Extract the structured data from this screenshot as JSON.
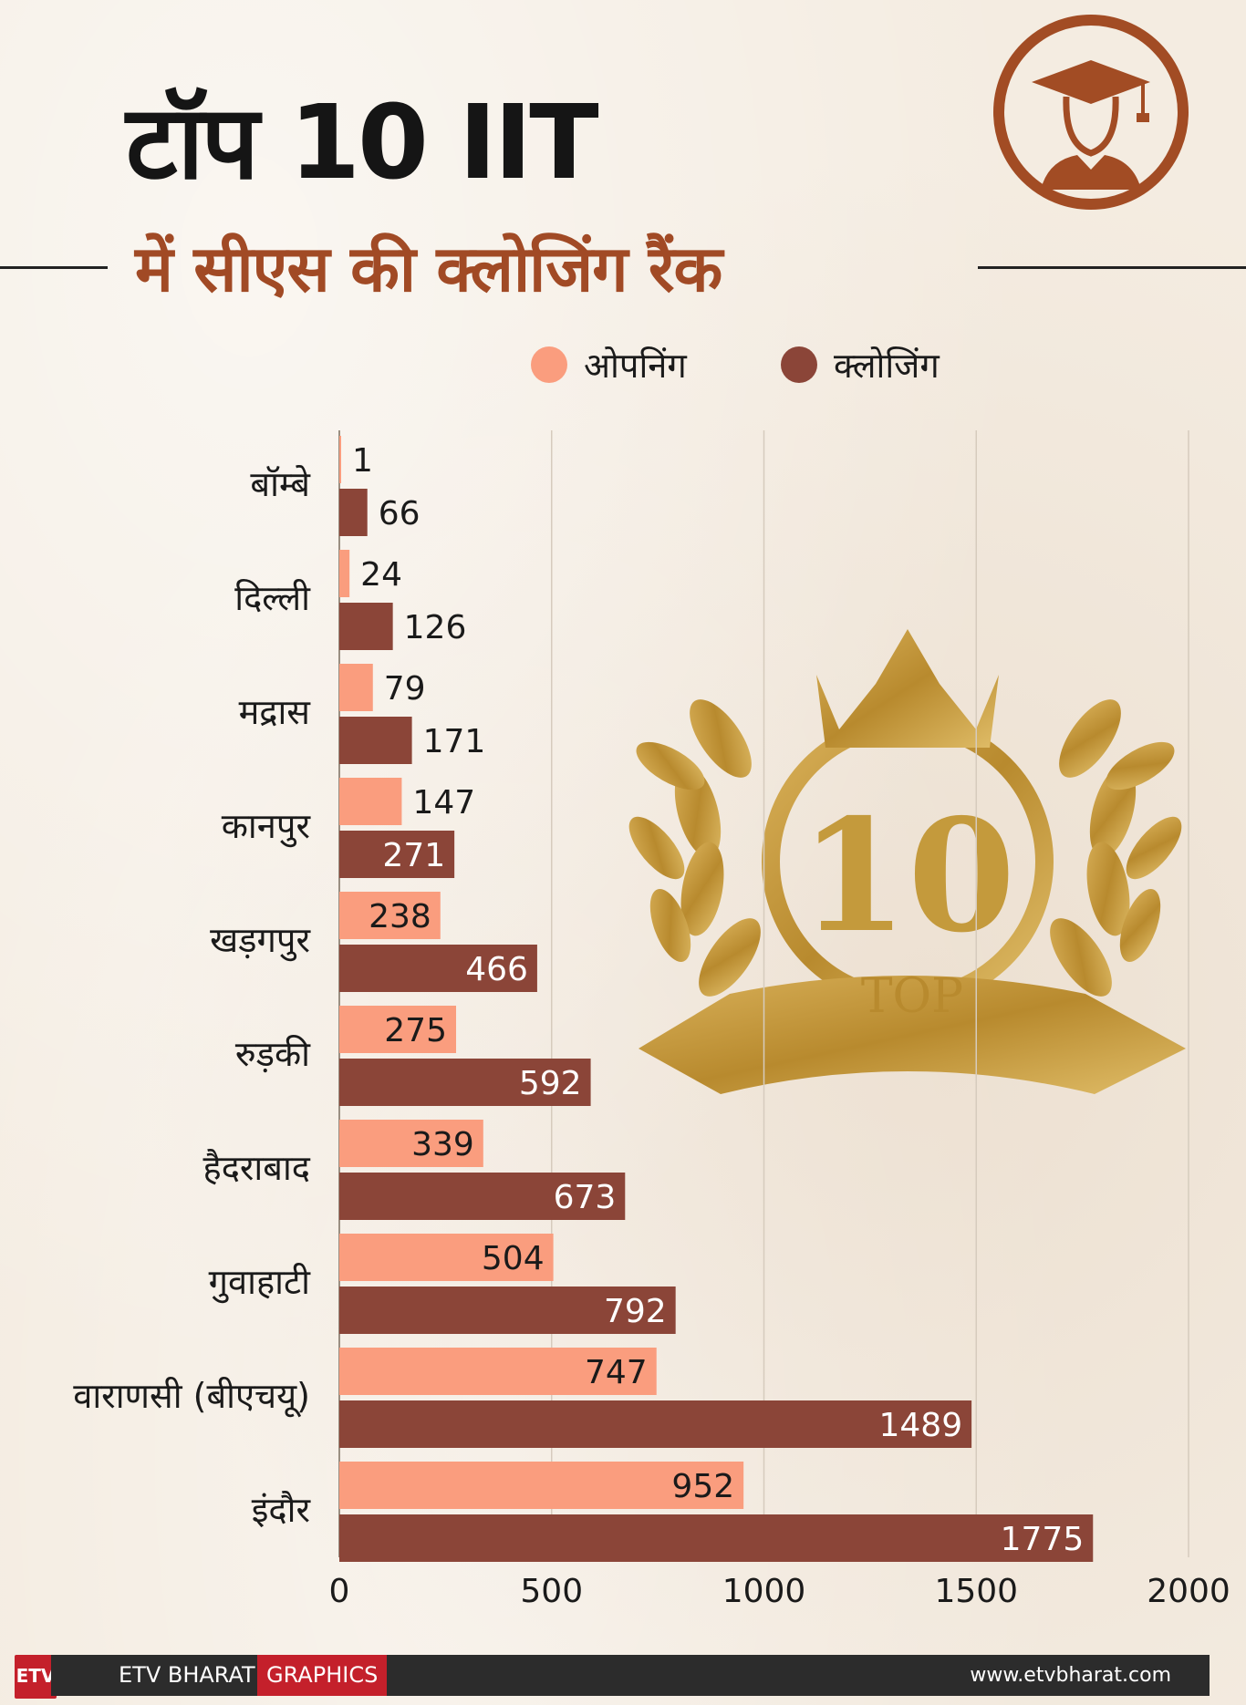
{
  "title": {
    "line1": "टॉप 10 IIT",
    "line2": "में सीएस की क्लोजिंग रैंक"
  },
  "colors": {
    "opening": "#fa9d7e",
    "closing": "#8b4538",
    "accent": "#a24c24",
    "gold": "#c49a3c"
  },
  "emblem": {
    "number": "10",
    "word": "TOP"
  },
  "chart_data": {
    "type": "bar",
    "orientation": "horizontal",
    "categories": [
      "बॉम्बे",
      "दिल्ली",
      "मद्रास",
      "कानपुर",
      "खड़गपुर",
      "रुड़की",
      "हैदराबाद",
      "गुवाहाटी",
      "वाराणसी (बीएचयू)",
      "इंदौर"
    ],
    "series": [
      {
        "name": "ओपनिंग",
        "values": [
          1,
          24,
          79,
          147,
          238,
          275,
          339,
          504,
          747,
          952
        ]
      },
      {
        "name": "क्लोजिंग",
        "values": [
          66,
          126,
          171,
          271,
          466,
          592,
          673,
          792,
          1489,
          1775
        ]
      }
    ],
    "xlim": [
      0,
      2000
    ],
    "xticks": [
      0,
      500,
      1000,
      1500,
      2000
    ],
    "grid": true,
    "legend": "top-right"
  },
  "footer": {
    "logo_text": "ETV",
    "brand": "ETV BHARAT",
    "badge": "GRAPHICS",
    "url": "www.etvbharat.com"
  }
}
